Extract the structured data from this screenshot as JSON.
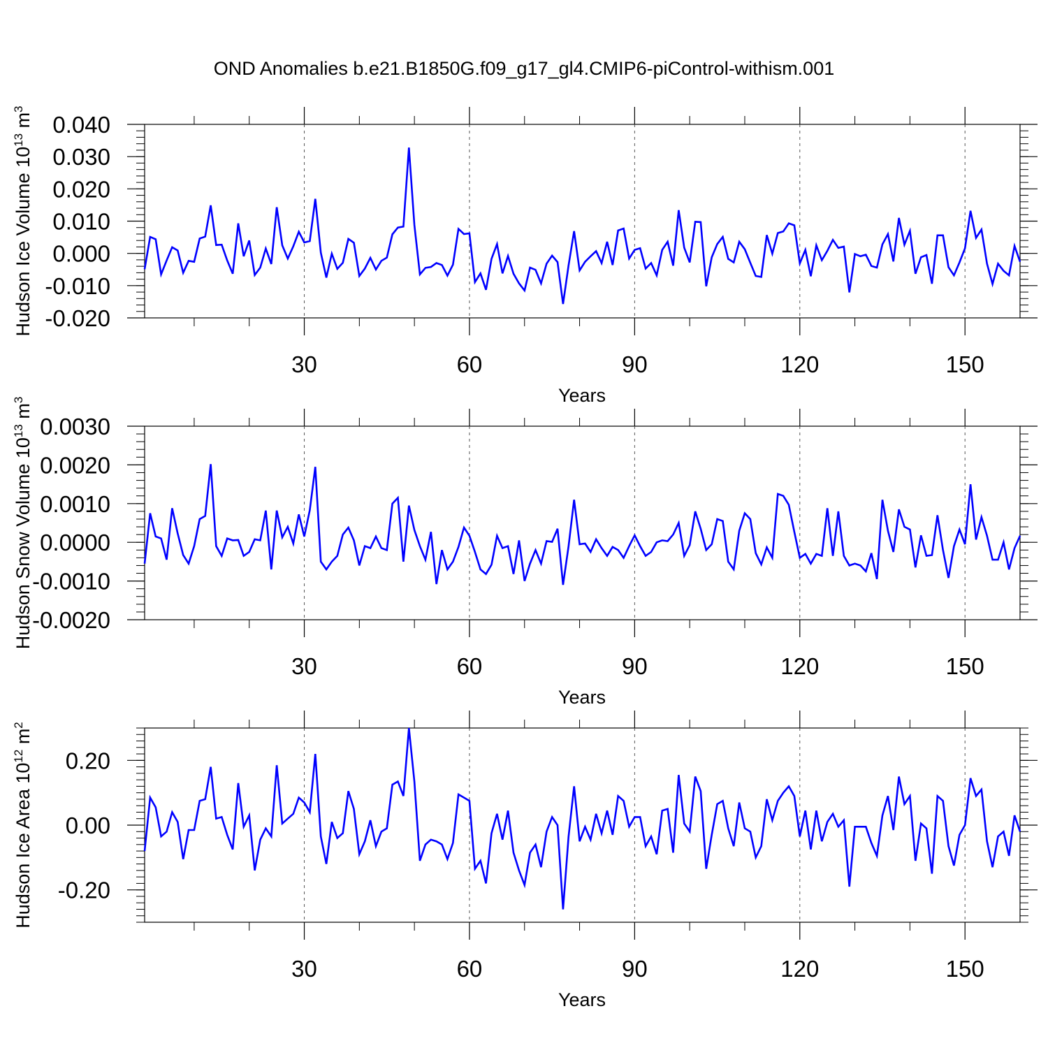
{
  "title": "OND Anomalies b.e21.B1850G.f09_g17_gl4.CMIP6-piControl-withism.001",
  "line_color": "#0000ff",
  "chart_data": [
    {
      "type": "line",
      "ylabel_main": "Hudson Ice Volume 10",
      "ylabel_exp": "13",
      "ylabel_unit": " m",
      "ylabel_unit_exp": "3",
      "xlabel": "Years",
      "xlim": [
        1,
        160
      ],
      "ylim": [
        -0.02,
        0.04
      ],
      "xticks": [
        30,
        60,
        90,
        120,
        150
      ],
      "xtick_labels": [
        "30",
        "60",
        "90",
        "120",
        "150"
      ],
      "yticks": [
        -0.02,
        -0.01,
        0.0,
        0.01,
        0.02,
        0.03,
        0.04
      ],
      "ytick_labels": [
        "-0.020",
        "-0.010",
        "0.000",
        "0.010",
        "0.020",
        "0.030",
        "0.040"
      ],
      "grid": "dashed vertical at major x ticks",
      "series": [
        {
          "values": [
            -0.0049,
            0.0051,
            0.0044,
            -0.0065,
            -0.0022,
            0.0019,
            0.0009,
            -0.006,
            -0.0023,
            -0.0026,
            0.0046,
            0.0052,
            0.0149,
            0.0026,
            0.0027,
            -0.0022,
            -0.0063,
            0.0093,
            -0.0009,
            0.004,
            -0.0067,
            -0.0044,
            0.0015,
            -0.0033,
            0.0143,
            0.0025,
            -0.0016,
            0.0022,
            0.0067,
            0.0034,
            0.0038,
            0.0169,
            0.0002,
            -0.0075,
            -0.0001,
            -0.0048,
            -0.0029,
            0.0045,
            0.0033,
            -0.007,
            -0.0047,
            -0.0014,
            -0.005,
            -0.0023,
            -0.0013,
            0.0059,
            0.008,
            0.0083,
            0.0328,
            0.0088,
            -0.0065,
            -0.0045,
            -0.0042,
            -0.003,
            -0.0036,
            -0.0069,
            -0.0035,
            0.0076,
            0.006,
            0.0062,
            -0.0089,
            -0.0062,
            -0.0113,
            -0.0017,
            0.0029,
            -0.0062,
            -0.0008,
            -0.0063,
            -0.0093,
            -0.0115,
            -0.0044,
            -0.0051,
            -0.0093,
            -0.0032,
            -0.0007,
            -0.0027,
            -0.0157,
            -0.0037,
            0.0069,
            -0.0053,
            -0.0026,
            -0.0009,
            0.0007,
            -0.003,
            0.0036,
            -0.0036,
            0.0071,
            0.0077,
            -0.0016,
            0.0011,
            0.0016,
            -0.0047,
            -0.003,
            -0.0068,
            0.0011,
            0.0036,
            -0.0038,
            0.0134,
            0.0018,
            -0.0028,
            0.0098,
            0.0097,
            -0.0102,
            -0.0012,
            0.0029,
            0.0051,
            -0.0017,
            -0.0028,
            0.0036,
            0.0013,
            -0.0029,
            -0.007,
            -0.0073,
            0.0057,
            -0.0001,
            0.0063,
            0.0068,
            0.0093,
            0.0087,
            -0.0031,
            0.0011,
            -0.0071,
            0.0025,
            -0.0021,
            0.0008,
            0.0042,
            0.0017,
            0.0021,
            -0.0121,
            -0.0002,
            -0.0009,
            -0.0004,
            -0.0039,
            -0.0044,
            0.0028,
            0.006,
            -0.0025,
            0.011,
            0.0027,
            0.007,
            -0.0063,
            -0.0012,
            -0.0005,
            -0.0094,
            0.0056,
            0.0056,
            -0.0043,
            -0.0068,
            -0.0028,
            0.0016,
            0.0132,
            0.0048,
            0.0074,
            -0.0032,
            -0.0095,
            -0.0032,
            -0.0054,
            -0.0068,
            0.0023,
            -0.0026
          ]
        }
      ]
    },
    {
      "type": "line",
      "ylabel_main": "Hudson Snow Volume 10",
      "ylabel_exp": "13",
      "ylabel_unit": " m",
      "ylabel_unit_exp": "3",
      "xlabel": "Years",
      "xlim": [
        1,
        160
      ],
      "ylim": [
        -0.002,
        0.003
      ],
      "xticks": [
        30,
        60,
        90,
        120,
        150
      ],
      "xtick_labels": [
        "30",
        "60",
        "90",
        "120",
        "150"
      ],
      "yticks": [
        -0.002,
        -0.001,
        0.0,
        0.001,
        0.002,
        0.003
      ],
      "ytick_labels": [
        "-0.0020",
        "-0.0010",
        "0.0000",
        "0.0010",
        "0.0020",
        "0.0030"
      ],
      "grid": "dashed vertical at major x ticks",
      "series": [
        {
          "values": [
            -0.00055,
            0.00075,
            0.00015,
            0.0001,
            -0.00045,
            0.00088,
            0.00023,
            -0.00033,
            -0.00055,
            -0.0001,
            0.0006,
            0.00068,
            0.00202,
            -0.0001,
            -0.00035,
            0.0001,
            5e-05,
            6e-05,
            -0.00035,
            -0.00025,
            8e-05,
            5e-05,
            0.00082,
            -0.0007,
            0.00082,
            0.00013,
            0.0004,
            -3e-05,
            0.00072,
            0.00015,
            0.00083,
            0.00195,
            -0.0005,
            -0.0007,
            -0.0005,
            -0.00035,
            0.0002,
            0.00038,
            5e-05,
            -0.0006,
            -0.0001,
            -0.00015,
            0.00015,
            -0.00015,
            -0.0002,
            0.001,
            0.00115,
            -0.0005,
            0.00095,
            0.00032,
            -0.0001,
            -0.00045,
            0.00027,
            -0.00108,
            -0.0002,
            -0.0007,
            -0.0005,
            -0.00012,
            0.00038,
            0.00017,
            -0.00025,
            -0.0007,
            -0.00082,
            -0.00058,
            0.00017,
            -0.00015,
            -0.0001,
            -0.00082,
            5e-05,
            -0.001,
            -0.00055,
            -0.0002,
            -0.00055,
            3e-05,
            1e-05,
            0.00035,
            -0.0011,
            -0.0001,
            0.0011,
            -5e-05,
            -3e-05,
            -0.00025,
            8e-05,
            -0.00015,
            -0.00035,
            -0.00012,
            -0.0002,
            -0.0004,
            -0.0001,
            0.00018,
            -0.0001,
            -0.00035,
            -0.00025,
            0.0,
            5e-05,
            3e-05,
            0.0002,
            0.0005,
            -0.00035,
            -7e-05,
            0.0008,
            0.00035,
            -0.0002,
            -5e-05,
            0.0006,
            0.00055,
            -0.0005,
            -0.0007,
            0.0003,
            0.00075,
            0.0006,
            -0.00028,
            -0.00057,
            -0.00013,
            -0.0004,
            0.00125,
            0.0012,
            0.00097,
            0.00027,
            -0.0004,
            -0.0003,
            -0.00055,
            -0.0003,
            -0.00035,
            0.00088,
            -0.00035,
            0.0008,
            -0.00035,
            -0.0006,
            -0.00055,
            -0.0006,
            -0.00075,
            -0.00028,
            -0.00095,
            0.0011,
            0.0003,
            -0.00025,
            0.00085,
            0.0004,
            0.00033,
            -0.00065,
            0.00018,
            -0.00035,
            -0.00033,
            0.0007,
            -0.0002,
            -0.00092,
            -0.0001,
            0.00033,
            -5e-05,
            0.0015,
            7e-05,
            0.00065,
            0.00017,
            -0.00045,
            -0.00045,
            0.0,
            -0.0007,
            -0.00015,
            0.00017
          ]
        }
      ]
    },
    {
      "type": "line",
      "ylabel_main": "Hudson Ice Area 10",
      "ylabel_exp": "12",
      "ylabel_unit": " m",
      "ylabel_unit_exp": "2",
      "xlabel": "Years",
      "xlim": [
        1,
        160
      ],
      "ylim": [
        -0.3,
        0.3
      ],
      "xticks": [
        30,
        60,
        90,
        120,
        150
      ],
      "xtick_labels": [
        "30",
        "60",
        "90",
        "120",
        "150"
      ],
      "yticks": [
        -0.2,
        0.0,
        0.2
      ],
      "ytick_labels": [
        "-0.20",
        "0.00",
        "0.20"
      ],
      "grid": "dashed vertical at major x ticks",
      "series": [
        {
          "values": [
            -0.08,
            0.085,
            0.055,
            -0.035,
            -0.02,
            0.04,
            0.01,
            -0.105,
            -0.015,
            -0.015,
            0.075,
            0.08,
            0.18,
            0.02,
            0.025,
            -0.03,
            -0.075,
            0.13,
            -0.005,
            0.03,
            -0.14,
            -0.045,
            -0.01,
            -0.035,
            0.185,
            0.005,
            0.02,
            0.035,
            0.085,
            0.07,
            0.04,
            0.22,
            -0.035,
            -0.12,
            0.01,
            -0.04,
            -0.025,
            0.105,
            0.05,
            -0.09,
            -0.05,
            0.015,
            -0.065,
            -0.02,
            -0.01,
            0.125,
            0.135,
            0.09,
            0.3,
            0.135,
            -0.11,
            -0.06,
            -0.045,
            -0.05,
            -0.06,
            -0.105,
            -0.055,
            0.095,
            0.085,
            0.075,
            -0.135,
            -0.11,
            -0.18,
            -0.025,
            0.035,
            -0.045,
            0.045,
            -0.085,
            -0.14,
            -0.185,
            -0.085,
            -0.06,
            -0.13,
            -0.02,
            0.025,
            0.0,
            -0.26,
            -0.035,
            0.12,
            -0.05,
            -0.005,
            -0.045,
            0.035,
            -0.025,
            0.045,
            -0.03,
            0.09,
            0.075,
            -0.005,
            0.025,
            0.025,
            -0.065,
            -0.035,
            -0.09,
            0.045,
            0.05,
            -0.085,
            0.155,
            0.005,
            -0.02,
            0.15,
            0.105,
            -0.135,
            -0.03,
            0.065,
            0.075,
            -0.01,
            -0.065,
            0.07,
            -0.01,
            -0.02,
            -0.1,
            -0.065,
            0.08,
            0.015,
            0.075,
            0.1,
            0.12,
            0.09,
            -0.035,
            0.045,
            -0.075,
            0.045,
            -0.05,
            0.01,
            0.035,
            -0.005,
            0.015,
            -0.19,
            -0.005,
            -0.005,
            -0.005,
            -0.055,
            -0.095,
            0.03,
            0.09,
            -0.015,
            0.15,
            0.065,
            0.09,
            -0.11,
            0.005,
            -0.01,
            -0.15,
            0.09,
            0.075,
            -0.065,
            -0.125,
            -0.03,
            0.0,
            0.145,
            0.09,
            0.11,
            -0.05,
            -0.13,
            -0.035,
            -0.02,
            -0.095,
            0.03,
            -0.02
          ]
        }
      ]
    }
  ]
}
